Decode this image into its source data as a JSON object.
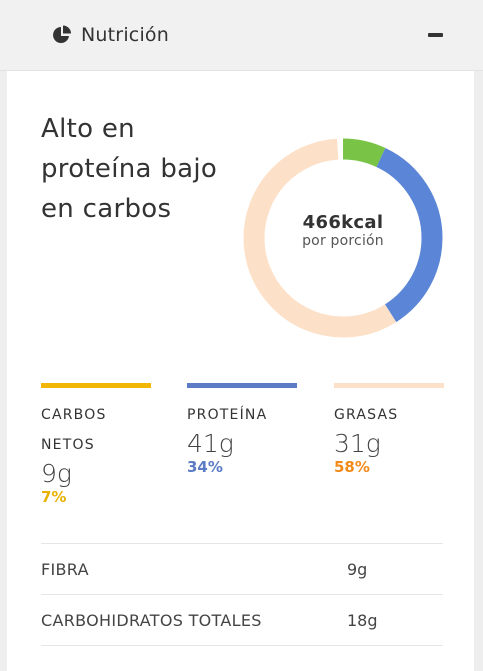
{
  "header": {
    "icon": "pie-chart-icon",
    "title": "Nutrición",
    "collapse_icon": "minus-icon"
  },
  "summary": {
    "headline": "Alto en proteína bajo en carbos",
    "calories": "466kcal",
    "calories_sub": "por porción"
  },
  "donut": {
    "segments": [
      {
        "name": "carbs",
        "fraction": 0.07,
        "color": "#79c447"
      },
      {
        "name": "protein",
        "fraction": 0.34,
        "color": "#5b85d6"
      },
      {
        "name": "fat",
        "fraction": 0.58,
        "color": "#fde0c8"
      }
    ]
  },
  "macros": {
    "carbs": {
      "label": "CARBOS NETOS",
      "value": "9g",
      "percent": "7%",
      "bar_color": "#f2b705",
      "pct_color": "#e8b200"
    },
    "protein": {
      "label": "PROTEÍNA",
      "value": "41g",
      "percent": "34%",
      "bar_color": "#5b7cc4",
      "pct_color": "#5b7cc4"
    },
    "fat": {
      "label": "GRASAS",
      "value": "31g",
      "percent": "58%",
      "bar_color": "#fde0c8",
      "pct_color": "#f28a1a"
    }
  },
  "details": [
    {
      "label": "FIBRA",
      "value": "9g"
    },
    {
      "label": "CARBOHIDRATOS TOTALES",
      "value": "18g"
    }
  ]
}
